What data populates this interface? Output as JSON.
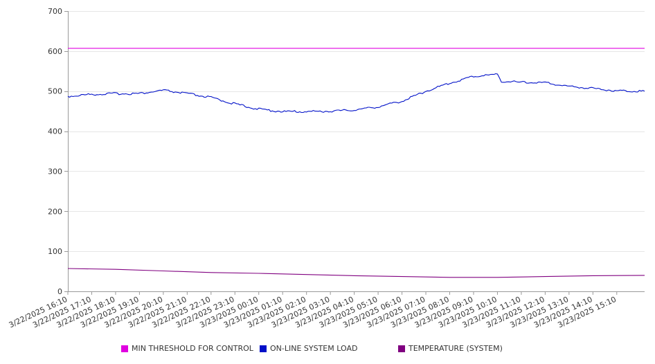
{
  "chart_data": {
    "type": "line",
    "title": "",
    "xlabel": "",
    "ylabel": "",
    "ylim": [
      0,
      700
    ],
    "y_ticks": [
      0,
      100,
      200,
      300,
      400,
      500,
      600,
      700
    ],
    "grid": true,
    "legend_position": "bottom",
    "x_start": "3/22/2025 16:10",
    "x_end": "3/23/2025 16:20",
    "x_tick_labels": [
      "3/22/2025 16:10",
      "3/22/2025 17:10",
      "3/22/2025 18:10",
      "3/22/2025 19:10",
      "3/22/2025 20:10",
      "3/22/2025 21:10",
      "3/22/2025 22:10",
      "3/22/2025 23:10",
      "3/23/2025 00:10",
      "3/23/2025 01:10",
      "3/23/2025 02:10",
      "3/23/2025 03:10",
      "3/23/2025 04:10",
      "3/23/2025 05:10",
      "3/23/2025 06:10",
      "3/23/2025 07:10",
      "3/23/2025 08:10",
      "3/23/2025 09:10",
      "3/23/2025 10:10",
      "3/23/2025 11:10",
      "3/23/2025 12:10",
      "3/23/2025 13:10",
      "3/23/2025 14:10",
      "3/23/2025 15:10"
    ],
    "series": [
      {
        "name": "MIN THRESHOLD FOR CONTROL",
        "color": "#e000e0",
        "points": [
          [
            "3/22/2025 16:10",
            607
          ],
          [
            "3/23/2025 16:20",
            607
          ]
        ]
      },
      {
        "name": "ON-LINE SYSTEM LOAD",
        "color": "#0010c8",
        "points": [
          [
            "3/22/2025 16:10",
            487
          ],
          [
            "3/22/2025 17:10",
            492
          ],
          [
            "3/22/2025 18:10",
            494
          ],
          [
            "3/22/2025 19:10",
            494
          ],
          [
            "3/22/2025 20:10",
            502
          ],
          [
            "3/22/2025 21:10",
            494
          ],
          [
            "3/22/2025 22:10",
            484
          ],
          [
            "3/22/2025 23:10",
            468
          ],
          [
            "3/23/2025 00:10",
            455
          ],
          [
            "3/23/2025 01:10",
            449
          ],
          [
            "3/23/2025 02:10",
            449
          ],
          [
            "3/23/2025 03:10",
            450
          ],
          [
            "3/23/2025 04:10",
            453
          ],
          [
            "3/23/2025 05:10",
            461
          ],
          [
            "3/23/2025 06:10",
            475
          ],
          [
            "3/23/2025 07:10",
            500
          ],
          [
            "3/23/2025 08:10",
            520
          ],
          [
            "3/23/2025 09:10",
            537
          ],
          [
            "3/23/2025 10:10",
            542
          ],
          [
            "3/23/2025 10:20",
            525
          ],
          [
            "3/23/2025 11:10",
            522
          ],
          [
            "3/23/2025 12:10",
            521
          ],
          [
            "3/23/2025 13:10",
            512
          ],
          [
            "3/23/2025 14:10",
            507
          ],
          [
            "3/23/2025 15:10",
            501
          ],
          [
            "3/23/2025 16:20",
            500
          ]
        ]
      },
      {
        "name": "TEMPERATURE (SYSTEM)",
        "color": "#800080",
        "points": [
          [
            "3/22/2025 16:10",
            57
          ],
          [
            "3/22/2025 18:10",
            55
          ],
          [
            "3/22/2025 20:10",
            51
          ],
          [
            "3/22/2025 22:10",
            47
          ],
          [
            "3/23/2025 00:10",
            45
          ],
          [
            "3/23/2025 02:10",
            42
          ],
          [
            "3/23/2025 04:10",
            39
          ],
          [
            "3/23/2025 06:10",
            37
          ],
          [
            "3/23/2025 08:10",
            35
          ],
          [
            "3/23/2025 10:10",
            35
          ],
          [
            "3/23/2025 12:10",
            37
          ],
          [
            "3/23/2025 14:10",
            39
          ],
          [
            "3/23/2025 16:20",
            40
          ]
        ]
      }
    ]
  }
}
